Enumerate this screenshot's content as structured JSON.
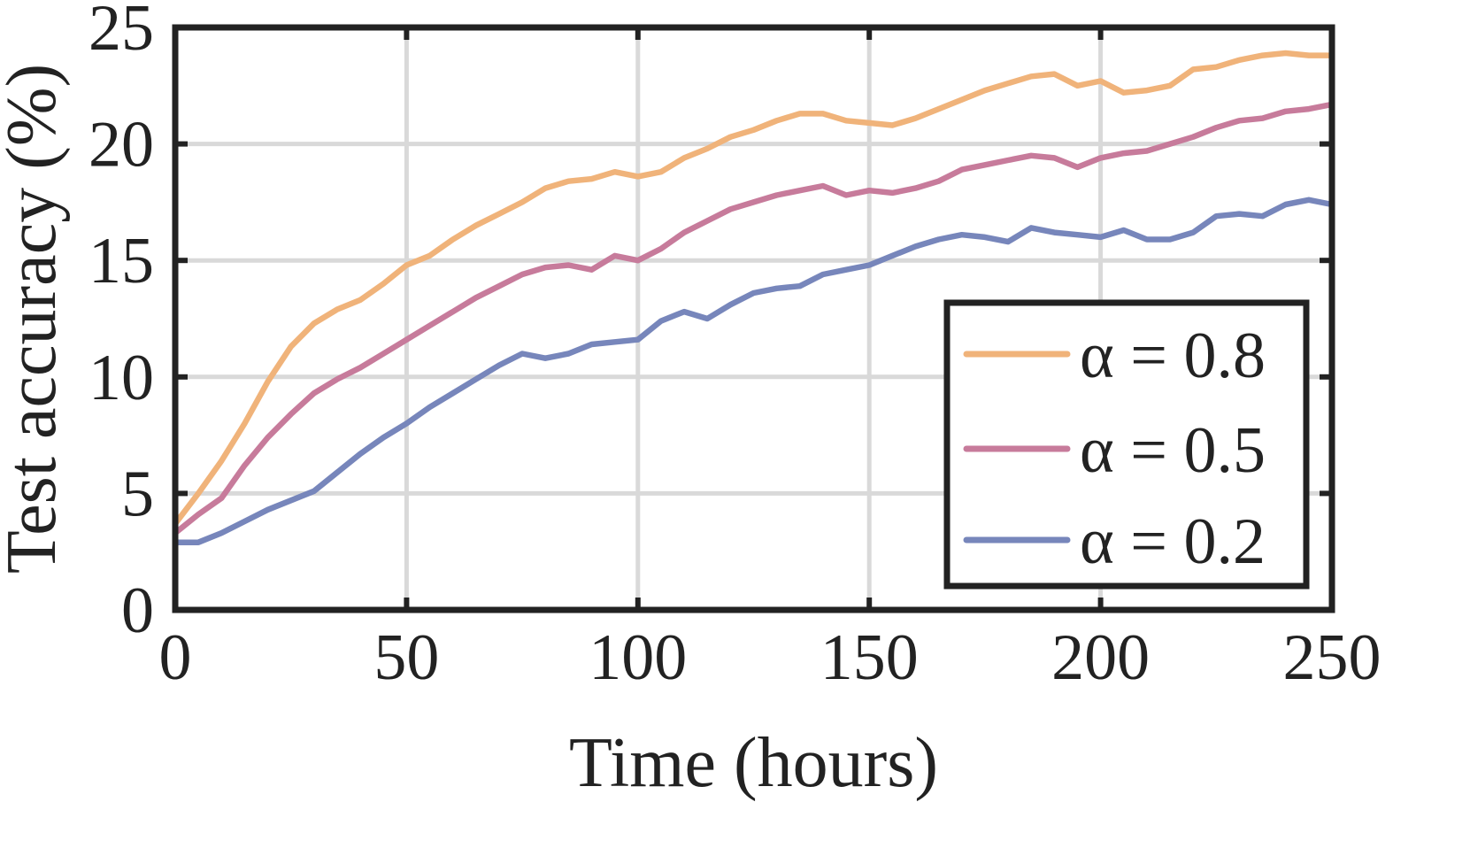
{
  "chart_data": {
    "type": "line",
    "title": "",
    "xlabel": "Time (hours)",
    "ylabel": "Test accuracy (%)",
    "xlim": [
      0,
      250
    ],
    "ylim": [
      0,
      25
    ],
    "xticks": [
      0,
      50,
      100,
      150,
      200,
      250
    ],
    "yticks": [
      0,
      5,
      10,
      15,
      20,
      25
    ],
    "grid": true,
    "legend_position": "bottom-right",
    "series": [
      {
        "name": "α = 0.8",
        "color": "#f0b37a",
        "x": [
          0,
          5,
          10,
          15,
          20,
          25,
          30,
          35,
          40,
          45,
          50,
          55,
          60,
          65,
          70,
          75,
          80,
          85,
          90,
          95,
          100,
          105,
          110,
          115,
          120,
          125,
          130,
          135,
          140,
          145,
          150,
          155,
          160,
          165,
          170,
          175,
          180,
          185,
          190,
          195,
          200,
          205,
          210,
          215,
          220,
          225,
          230,
          235,
          240,
          245,
          250
        ],
        "y": [
          3.7,
          5.0,
          6.4,
          8.0,
          9.8,
          11.3,
          12.3,
          12.9,
          13.3,
          14.0,
          14.8,
          15.2,
          15.9,
          16.5,
          17.0,
          17.5,
          18.1,
          18.4,
          18.5,
          18.8,
          18.6,
          18.8,
          19.4,
          19.8,
          20.3,
          20.6,
          21.0,
          21.3,
          21.3,
          21.0,
          20.9,
          20.8,
          21.1,
          21.5,
          21.9,
          22.3,
          22.6,
          22.9,
          23.0,
          22.5,
          22.7,
          22.2,
          22.3,
          22.5,
          23.2,
          23.3,
          23.6,
          23.8,
          23.9,
          23.8,
          23.8
        ]
      },
      {
        "name": "α = 0.5",
        "color": "#c77b9b",
        "x": [
          0,
          5,
          10,
          15,
          20,
          25,
          30,
          35,
          40,
          45,
          50,
          55,
          60,
          65,
          70,
          75,
          80,
          85,
          90,
          95,
          100,
          105,
          110,
          115,
          120,
          125,
          130,
          135,
          140,
          145,
          150,
          155,
          160,
          165,
          170,
          175,
          180,
          185,
          190,
          195,
          200,
          205,
          210,
          215,
          220,
          225,
          230,
          235,
          240,
          245,
          250
        ],
        "y": [
          3.3,
          4.1,
          4.8,
          6.2,
          7.4,
          8.4,
          9.3,
          9.9,
          10.4,
          11.0,
          11.6,
          12.2,
          12.8,
          13.4,
          13.9,
          14.4,
          14.7,
          14.8,
          14.6,
          15.2,
          15.0,
          15.5,
          16.2,
          16.7,
          17.2,
          17.5,
          17.8,
          18.0,
          18.2,
          17.8,
          18.0,
          17.9,
          18.1,
          18.4,
          18.9,
          19.1,
          19.3,
          19.5,
          19.4,
          19.0,
          19.4,
          19.6,
          19.7,
          20.0,
          20.3,
          20.7,
          21.0,
          21.1,
          21.4,
          21.5,
          21.7
        ]
      },
      {
        "name": "α = 0.2",
        "color": "#7786bb",
        "x": [
          0,
          5,
          10,
          15,
          20,
          25,
          30,
          35,
          40,
          45,
          50,
          55,
          60,
          65,
          70,
          75,
          80,
          85,
          90,
          95,
          100,
          105,
          110,
          115,
          120,
          125,
          130,
          135,
          140,
          145,
          150,
          155,
          160,
          165,
          170,
          175,
          180,
          185,
          190,
          195,
          200,
          205,
          210,
          215,
          220,
          225,
          230,
          235,
          240,
          245,
          250
        ],
        "y": [
          2.9,
          2.9,
          3.3,
          3.8,
          4.3,
          4.7,
          5.1,
          5.9,
          6.7,
          7.4,
          8.0,
          8.7,
          9.3,
          9.9,
          10.5,
          11.0,
          10.8,
          11.0,
          11.4,
          11.5,
          11.6,
          12.4,
          12.8,
          12.5,
          13.1,
          13.6,
          13.8,
          13.9,
          14.4,
          14.6,
          14.8,
          15.2,
          15.6,
          15.9,
          16.1,
          16.0,
          15.8,
          16.4,
          16.2,
          16.1,
          16.0,
          16.3,
          15.9,
          15.9,
          16.2,
          16.9,
          17.0,
          16.9,
          17.4,
          17.6,
          17.4
        ]
      }
    ]
  }
}
